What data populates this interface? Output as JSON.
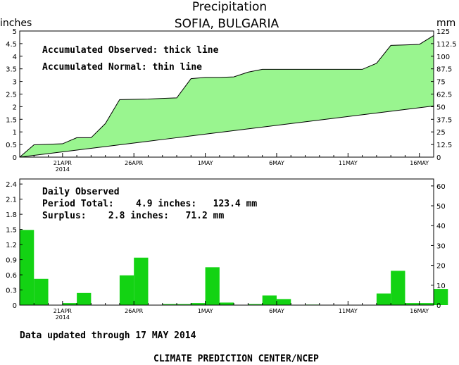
{
  "header": {
    "title": "Precipitation",
    "subtitle": "SOFIA,  BULGARIA",
    "left_unit": "inches",
    "right_unit": "mm"
  },
  "annotations": {
    "acc_observed": "Accumulated Observed: thick line",
    "acc_normal": "Accumulated Normal: thin line",
    "daily_observed": "Daily Observed",
    "period_total": "Period Total:    4.9 inches:   123.4 mm",
    "surplus": "Surplus:    2.8 inches:   71.2 mm"
  },
  "footer": {
    "updated": "Data updated through 17 MAY 2014",
    "credit": "CLIMATE PREDICTION CENTER/NCEP"
  },
  "colors": {
    "area_fill": "#99f58f",
    "bar_fill": "#13d313",
    "line": "#000000"
  },
  "x_axis": {
    "day_count": 29,
    "ticks": [
      {
        "day": 3,
        "label": "21APR",
        "sub": "2014"
      },
      {
        "day": 8,
        "label": "26APR",
        "sub": ""
      },
      {
        "day": 13,
        "label": "1MAY",
        "sub": ""
      },
      {
        "day": 18,
        "label": "6MAY",
        "sub": ""
      },
      {
        "day": 23,
        "label": "11MAY",
        "sub": ""
      },
      {
        "day": 28,
        "label": "16MAY",
        "sub": ""
      }
    ]
  },
  "chart_data": [
    {
      "type": "area",
      "name": "accumulated",
      "ylim_inches": [
        0,
        5
      ],
      "ylim_mm": [
        0,
        125
      ],
      "y_ticks_inches": [
        "0",
        "0.5",
        "1",
        "1.5",
        "2",
        "2.5",
        "3",
        "3.5",
        "4",
        "4.5",
        "5"
      ],
      "y_ticks_mm": [
        "0",
        "12.5",
        "25",
        "37.5",
        "50",
        "62.5",
        "75",
        "87.5",
        "100",
        "112.5",
        "125"
      ],
      "x": [
        0,
        1,
        2,
        3,
        4,
        5,
        6,
        7,
        8,
        9,
        10,
        11,
        12,
        13,
        14,
        15,
        16,
        17,
        18,
        19,
        20,
        21,
        22,
        23,
        24,
        25,
        26,
        27,
        28,
        29
      ],
      "series": [
        {
          "name": "Accumulated Observed",
          "values": [
            0,
            0.49,
            0.51,
            0.53,
            0.77,
            0.77,
            1.33,
            2.28,
            2.29,
            2.3,
            2.33,
            2.35,
            3.11,
            3.16,
            3.16,
            3.18,
            3.37,
            3.48,
            3.48,
            3.48,
            3.48,
            3.48,
            3.48,
            3.48,
            3.48,
            3.72,
            4.43,
            4.45,
            4.47,
            4.82
          ]
        },
        {
          "name": "Accumulated Normal",
          "values": [
            0,
            0.07,
            0.14,
            0.21,
            0.28,
            0.35,
            0.42,
            0.49,
            0.56,
            0.63,
            0.7,
            0.77,
            0.84,
            0.91,
            0.98,
            1.05,
            1.12,
            1.19,
            1.26,
            1.33,
            1.4,
            1.47,
            1.54,
            1.61,
            1.68,
            1.75,
            1.82,
            1.89,
            1.96,
            2.03
          ]
        }
      ]
    },
    {
      "type": "bar",
      "name": "daily",
      "ylim_inches": [
        0,
        2.5
      ],
      "ylim_mm": [
        0,
        63.5
      ],
      "y_ticks_inches": [
        "0",
        "0.3",
        "0.6",
        "0.9",
        "1.2",
        "1.5",
        "1.8",
        "2.1",
        "2.4"
      ],
      "y_ticks_mm": [
        "0",
        "10",
        "20",
        "30",
        "40",
        "50",
        "60"
      ],
      "values": [
        1.49,
        0.52,
        0.0,
        0.04,
        0.24,
        0.0,
        0.0,
        0.59,
        0.94,
        0.0,
        0.02,
        0.02,
        0.04,
        0.75,
        0.05,
        0.0,
        0.02,
        0.19,
        0.12,
        0.0,
        0.01,
        0.0,
        0.0,
        0.0,
        0.0,
        0.23,
        0.68,
        0.04,
        0.04,
        0.32
      ]
    }
  ]
}
